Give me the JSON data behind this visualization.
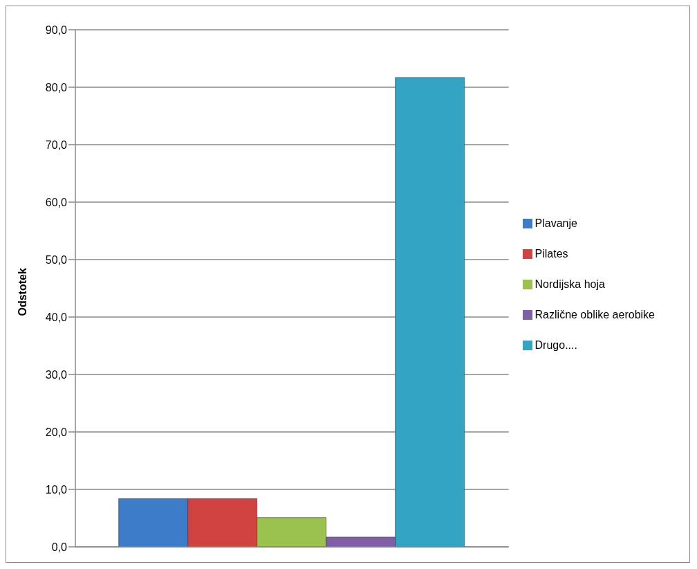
{
  "chart_data": {
    "type": "bar",
    "ylabel": "Odstotek",
    "categories": [
      null
    ],
    "series": [
      {
        "name": "Plavanje",
        "color": "#3d7cc9",
        "values": [
          8.4
        ]
      },
      {
        "name": "Pilates",
        "color": "#d04340",
        "values": [
          8.4
        ]
      },
      {
        "name": "Nordijska hoja",
        "color": "#9bc14f",
        "values": [
          5.1
        ]
      },
      {
        "name": "Različne oblike aerobike",
        "color": "#7f5fa6",
        "values": [
          1.7
        ]
      },
      {
        "name": "Drugo....",
        "color": "#33a4c4",
        "values": [
          81.7
        ]
      }
    ],
    "ylim": [
      0,
      90
    ],
    "yticks": [
      {
        "value": 0,
        "label": "0,0"
      },
      {
        "value": 10,
        "label": "10,0"
      },
      {
        "value": 20,
        "label": "20,0"
      },
      {
        "value": 30,
        "label": "30,0"
      },
      {
        "value": 40,
        "label": "40,0"
      },
      {
        "value": 50,
        "label": "50,0"
      },
      {
        "value": 60,
        "label": "60,0"
      },
      {
        "value": 70,
        "label": "70,0"
      },
      {
        "value": 80,
        "label": "80,0"
      },
      {
        "value": 90,
        "label": "90,0"
      }
    ],
    "grid": "y",
    "legend": "right"
  }
}
